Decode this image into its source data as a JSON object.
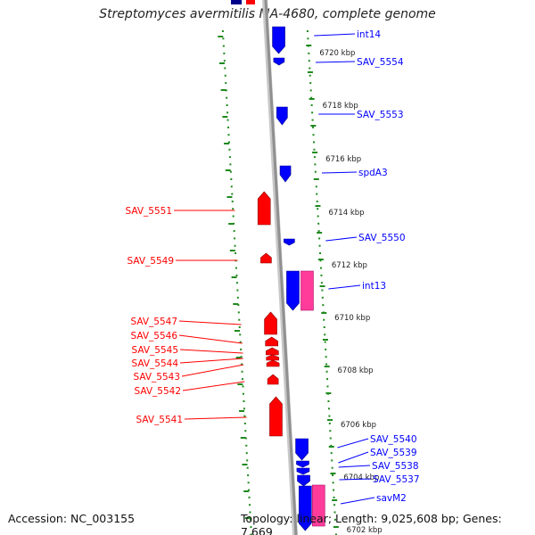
{
  "title": "Streptomyces avermitilis MA-4680, complete genome",
  "accession": "Accession: NC_003155",
  "topology": "Topology: linear; Length: 9,025,608 bp; Genes: 7,669",
  "colors": {
    "forward_gene": "#0000ff",
    "reverse_gene": "#ff0000",
    "rna_gene": "#ff3c9a",
    "backbone": "#909090",
    "tick": "#1e8a1e"
  },
  "position_ticks": [
    "6720 kbp",
    "6718 kbp",
    "6716 kbp",
    "6714 kbp",
    "6712 kbp",
    "6710 kbp",
    "6708 kbp",
    "6706 kbp",
    "6704 kbp",
    "6702 kbp"
  ],
  "forward_gene_labels": [
    "int14",
    "SAV_5554",
    "SAV_5553",
    "spdA3",
    "SAV_5550",
    "int13",
    "SAV_5540",
    "SAV_5539",
    "SAV_5538",
    "SAV_5537",
    "savM2"
  ],
  "reverse_gene_labels": [
    "SAV_5551",
    "SAV_5549",
    "SAV_5547",
    "SAV_5546",
    "SAV_5545",
    "SAV_5544",
    "SAV_5543",
    "SAV_5542",
    "SAV_5541"
  ]
}
